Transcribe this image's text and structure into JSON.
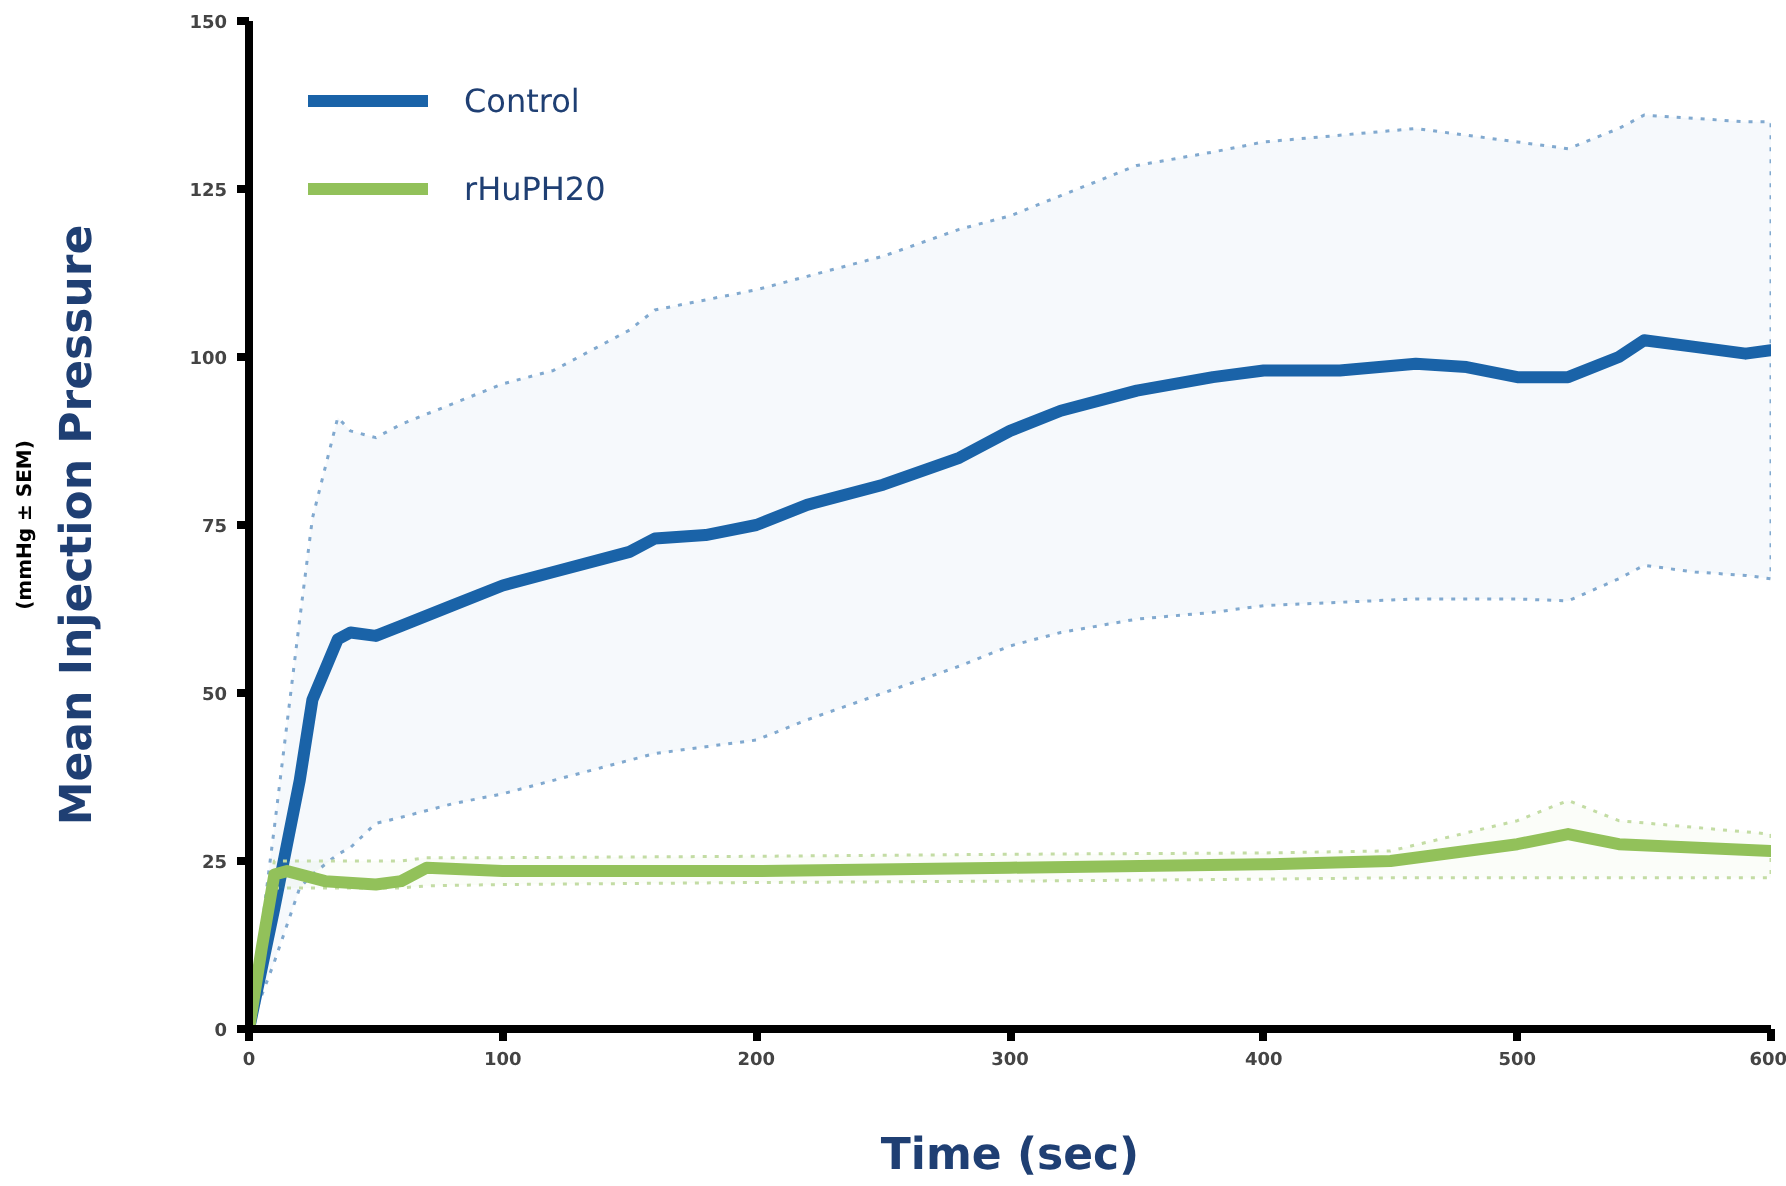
{
  "chart_data": {
    "type": "line",
    "xlabel": "Time (sec)",
    "ylabel": "Mean Injection Pressure",
    "annotations": [
      "(mmHg ± SEM)"
    ],
    "xlim": [
      0,
      600
    ],
    "xticks": [
      0,
      100,
      200,
      300,
      400,
      500,
      600
    ],
    "ylim": [
      0,
      150
    ],
    "yticks": [
      0,
      25,
      50,
      75,
      100,
      125,
      150
    ],
    "grid": false,
    "legend": "top left",
    "line_style": "solid",
    "series": [
      {
        "name": "Control",
        "color": "#1a63a8",
        "x": [
          0,
          10,
          20,
          25,
          35,
          40,
          50,
          60,
          80,
          100,
          120,
          150,
          160,
          180,
          200,
          220,
          250,
          280,
          300,
          320,
          350,
          380,
          400,
          430,
          460,
          480,
          500,
          520,
          540,
          550,
          570,
          590,
          600
        ],
        "values": [
          0,
          18,
          37,
          49,
          58,
          59,
          58.5,
          60,
          63,
          66,
          68,
          71,
          73,
          73.5,
          75,
          78,
          81,
          85,
          89,
          92,
          95,
          97,
          98,
          98,
          99,
          98.5,
          97,
          97,
          100,
          102.5,
          101.5,
          100.5,
          101
        ],
        "upper": [
          0,
          30,
          61,
          76,
          91,
          89,
          88,
          90,
          93,
          96,
          98,
          104,
          107,
          108.5,
          110,
          112,
          115,
          119,
          121,
          124,
          128.5,
          130.5,
          132,
          133,
          134,
          133,
          132,
          131,
          134,
          136,
          135.5,
          135,
          135
        ],
        "lower": [
          0,
          10,
          21,
          23,
          26,
          27,
          30.6,
          31.5,
          33.5,
          35,
          37,
          40,
          41,
          42,
          43,
          46,
          50,
          54,
          57,
          59,
          61,
          62,
          63,
          63.5,
          64,
          64,
          64,
          63.7,
          67,
          69,
          68,
          67.5,
          67
        ]
      },
      {
        "name": "rHuPH20",
        "color": "#92c15a",
        "x": [
          0,
          5,
          10,
          15,
          30,
          50,
          60,
          70,
          100,
          200,
          300,
          400,
          450,
          500,
          520,
          540,
          600
        ],
        "values": [
          0,
          12,
          23,
          23.5,
          22,
          21.5,
          22,
          24,
          23.5,
          23.5,
          24,
          24.5,
          25,
          27.5,
          29,
          27.5,
          26.5
        ],
        "upper": [
          0,
          13,
          25,
          25,
          25,
          25,
          25,
          25.5,
          25.5,
          25.7,
          26,
          26.2,
          26.5,
          31,
          34,
          31,
          29
        ],
        "lower": [
          0,
          11,
          21,
          21,
          21,
          21,
          21,
          21.3,
          21.5,
          21.8,
          22,
          22.3,
          22.5,
          22.5,
          22.5,
          22.5,
          22.5
        ]
      }
    ]
  }
}
